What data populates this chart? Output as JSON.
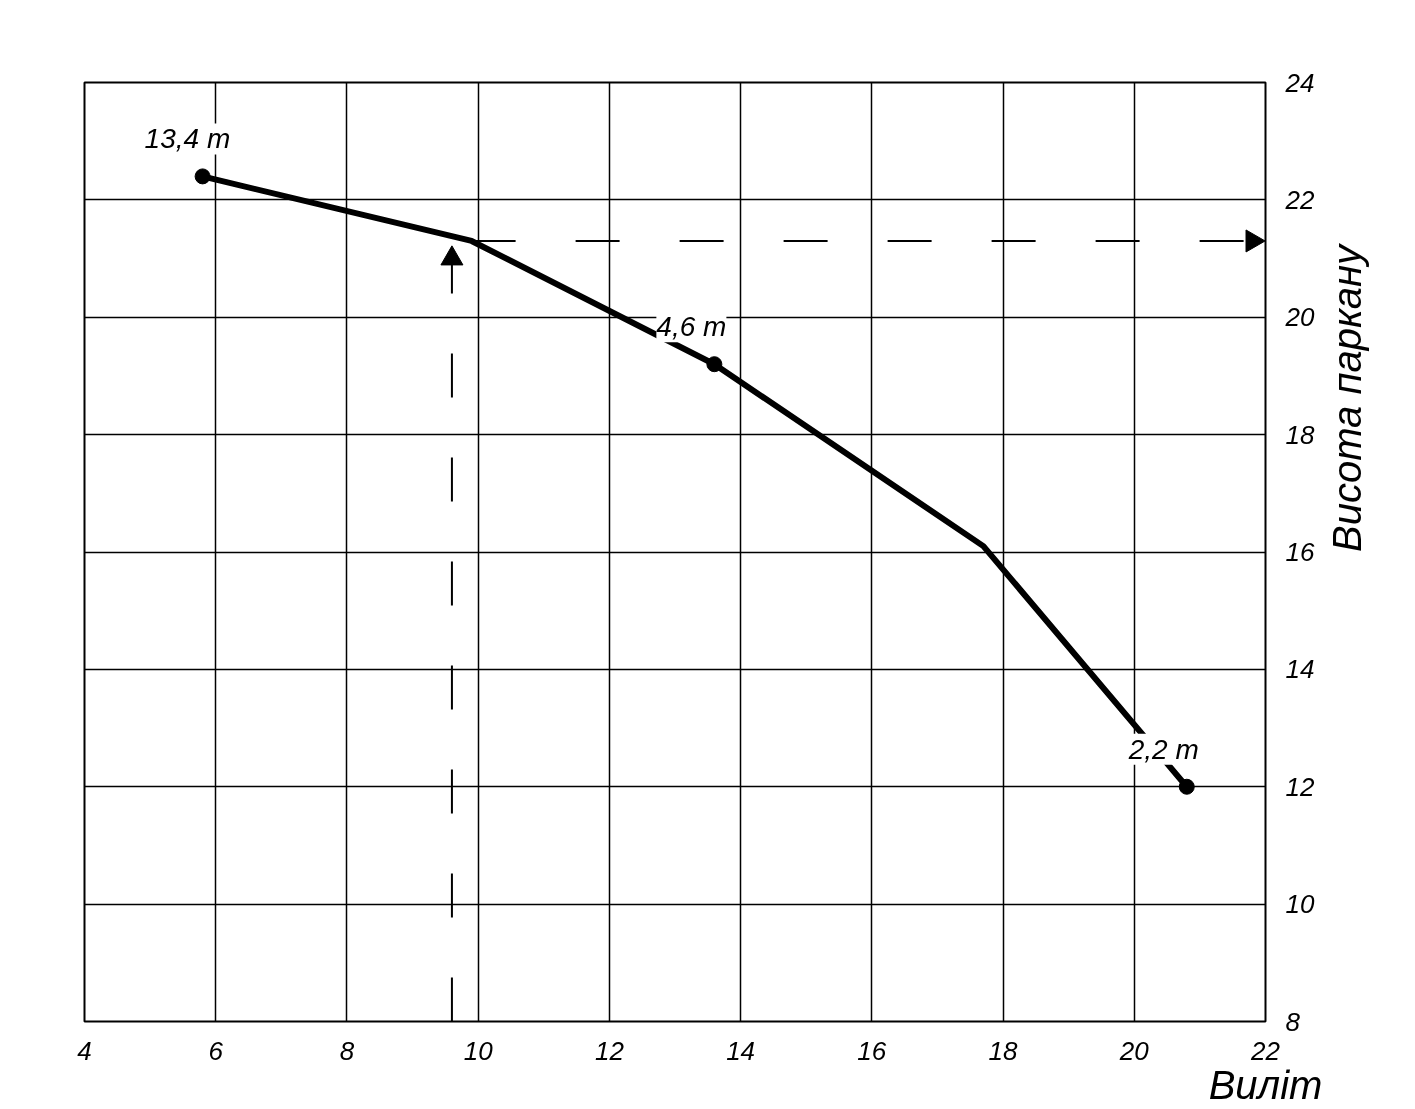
{
  "chart_data": {
    "type": "line",
    "xlabel": "Виліт",
    "ylabel": "Висота паркану",
    "xlim": [
      4,
      22
    ],
    "ylim": [
      8,
      24
    ],
    "xticks": [
      4,
      6,
      8,
      10,
      12,
      14,
      16,
      18,
      20,
      22
    ],
    "yticks": [
      8,
      10,
      12,
      14,
      16,
      18,
      20,
      22,
      24
    ],
    "grid": true,
    "marker": "none",
    "series": [
      {
        "color": "#000000",
        "x": [
          5.8,
          9.9,
          13.6,
          17.7,
          20.8
        ],
        "values": [
          22.4,
          21.3,
          19.2,
          16.1,
          12.0
        ]
      },
      {
        "type": "scatter",
        "color": "#000000",
        "marker": "circle",
        "x": [
          5.8,
          13.6,
          20.8
        ],
        "values": [
          22.4,
          19.2,
          12.0
        ]
      },
      {
        "type": "line",
        "color": "#000000",
        "line_style": "dashed",
        "marker": "triangle",
        "x": [
          9.6,
          9.6
        ],
        "values": [
          8,
          21.0
        ]
      },
      {
        "type": "line",
        "color": "#000000",
        "line_style": "dashed",
        "marker": "triangle",
        "x": [
          9.9,
          21.8
        ],
        "values": [
          21.3,
          21.3
        ]
      }
    ],
    "annotations": [
      {
        "text": "13,4 т",
        "x": 5.8,
        "y": 22.4
      },
      {
        "text": "4,6 т",
        "x": 13.6,
        "y": 19.2
      },
      {
        "text": "2,2 т",
        "x": 20.8,
        "y": 12.0
      }
    ]
  }
}
